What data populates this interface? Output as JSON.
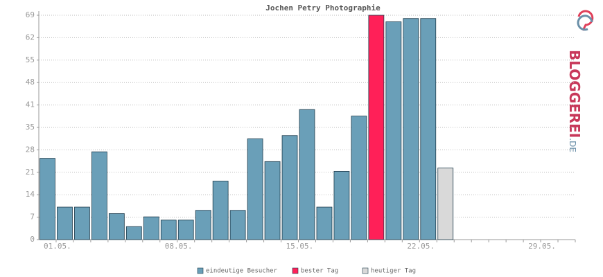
{
  "chart_data": {
    "type": "bar",
    "title": "Jochen Petry Photographie",
    "categories": [
      "01.05.",
      null,
      null,
      null,
      null,
      null,
      null,
      "08.05.",
      null,
      null,
      null,
      null,
      null,
      null,
      "15.05.",
      null,
      null,
      null,
      null,
      null,
      null,
      "22.05.",
      null,
      null,
      null,
      null,
      null,
      null,
      "29.05.",
      null,
      null
    ],
    "series": [
      {
        "name": "eindeutige Besucher",
        "color": "#6a9fb8",
        "values": [
          25,
          10,
          10,
          27,
          8,
          4,
          7,
          6,
          6,
          9,
          18,
          9,
          31,
          24,
          32,
          40,
          10,
          21,
          38,
          null,
          67,
          68,
          68,
          null,
          null,
          null,
          null,
          null,
          null,
          null,
          null
        ]
      },
      {
        "name": "bester Tag",
        "color": "#ff2058",
        "values": [
          null,
          null,
          null,
          null,
          null,
          null,
          null,
          null,
          null,
          null,
          null,
          null,
          null,
          null,
          null,
          null,
          null,
          null,
          null,
          69,
          null,
          null,
          null,
          null,
          null,
          null,
          null,
          null,
          null,
          null,
          null
        ]
      },
      {
        "name": "heutiger Tag",
        "color": "#d9d9d9",
        "values": [
          null,
          null,
          null,
          null,
          null,
          null,
          null,
          null,
          null,
          null,
          null,
          null,
          null,
          null,
          null,
          null,
          null,
          null,
          null,
          null,
          null,
          null,
          null,
          22,
          null,
          null,
          null,
          null,
          null,
          null,
          null
        ]
      }
    ],
    "ylim": [
      0,
      69
    ],
    "yticks": [
      0,
      {
        "value": 6.9,
        "label": "7"
      },
      {
        "value": 13.8,
        "label": "14"
      },
      {
        "value": 20.7,
        "label": "21"
      },
      {
        "value": 27.6,
        "label": "28"
      },
      {
        "value": 34.5,
        "label": "35"
      },
      {
        "value": 41.4,
        "label": "41"
      },
      {
        "value": 48.3,
        "label": "48"
      },
      {
        "value": 55.2,
        "label": "55"
      },
      {
        "value": 62.1,
        "label": "62"
      },
      69
    ],
    "grid": true
  },
  "logo": {
    "main": "BLOGGEREI",
    "suffix": ".DE"
  }
}
